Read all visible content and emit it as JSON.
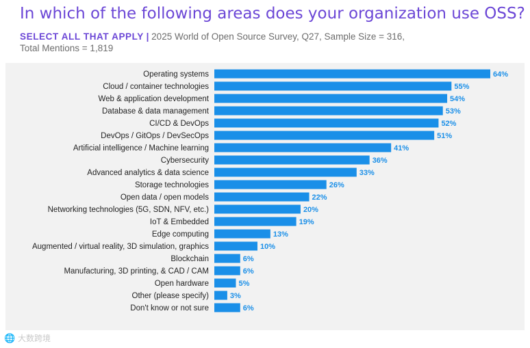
{
  "header": {
    "title": "In which of the following areas does your organization use OSS?",
    "subtitle_emphasis": "SELECT ALL THAT APPLY",
    "subtitle_sep": "|",
    "subtitle_rest": " 2025 World of Open Source Survey, Q27, Sample Size = 316,",
    "subtitle_line2": "Total Mentions = 1,819"
  },
  "watermark": {
    "icon": "logo-mark-icon",
    "text": "大数跨境"
  },
  "colors": {
    "bar": "#1a8fe8",
    "value_label": "#1a8fe8",
    "title": "#6b46d6",
    "panel": "#f2f2f2"
  },
  "chart_data": {
    "type": "bar",
    "orientation": "horizontal",
    "title": "In which of the following areas does your organization use OSS?",
    "xlabel": "",
    "ylabel": "",
    "xlim": [
      0,
      64
    ],
    "value_suffix": "%",
    "categories": [
      "Operating systems",
      "Cloud / container technologies",
      "Web & application development",
      "Database & data management",
      "CI/CD & DevOps",
      "DevOps / GitOps / DevSecOps",
      "Artificial intelligence / Machine learning",
      "Cybersecurity",
      "Advanced analytics & data science",
      "Storage technologies",
      "Open data / open models",
      "Networking technologies (5G, SDN, NFV, etc.)",
      "IoT & Embedded",
      "Edge computing",
      "Augmented / virtual reality, 3D simulation, graphics",
      "Blockchain",
      "Manufacturing, 3D printing, & CAD / CAM",
      "Open hardware",
      "Other (please specify)",
      "Don't know or not sure"
    ],
    "values": [
      64,
      55,
      54,
      53,
      52,
      51,
      41,
      36,
      33,
      26,
      22,
      20,
      19,
      13,
      10,
      6,
      6,
      5,
      3,
      6
    ],
    "value_labels": [
      "64%",
      "55%",
      "54%",
      "53%",
      "52%",
      "51%",
      "41%",
      "36%",
      "33%",
      "26%",
      "22%",
      "20%",
      "19%",
      "13%",
      "10%",
      "6%",
      "6%",
      "5%",
      "3%",
      "6%"
    ]
  }
}
